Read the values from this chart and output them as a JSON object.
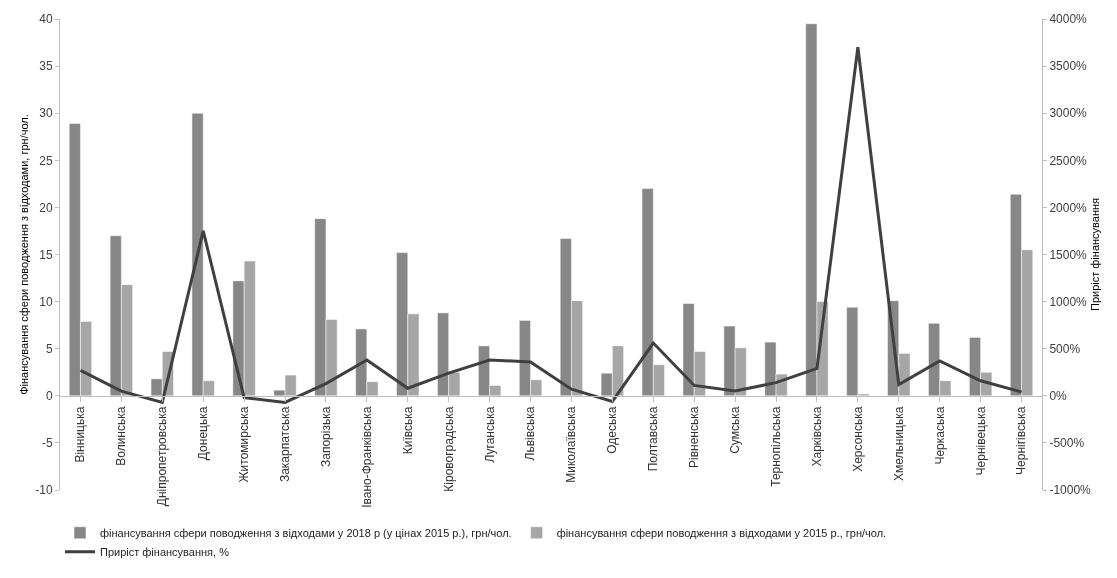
{
  "chart_data": {
    "type": "bar",
    "ylabel": "Фінансування сфери поводження з відходами, грн/чол.",
    "y2label": "Приріст фінансування",
    "categories": [
      "Вінницька",
      "Волинська",
      "Дніпропетровська",
      "Донецька",
      "Житомирська",
      "Закарпатська",
      "Запорізька",
      "Івано-Франківська",
      "Київська",
      "Кіровоградська",
      "Луганська",
      "Львівська",
      "Миколаївська",
      "Одеська",
      "Полтавська",
      "Рівненська",
      "Сумська",
      "Тернопільська",
      "Харківська",
      "Херсонська",
      "Хмельницька",
      "Черкаська",
      "Чернівецька",
      "Чернігівська"
    ],
    "series": [
      {
        "name": "фінансування сфери поводження з відходами у 2018 р (у цінах 2015 р.), грн/чол.",
        "color": "#878787",
        "values": [
          28.9,
          17,
          1.8,
          30,
          12.2,
          0.6,
          18.8,
          7.1,
          15.2,
          8.8,
          5.3,
          8,
          16.7,
          2.4,
          22,
          9.8,
          7.4,
          5.7,
          39.5,
          9.4,
          10.1,
          7.7,
          6.2,
          21.4
        ]
      },
      {
        "name": "фінансування сфери поводження з відходами у 2015 р., грн/чол.",
        "color": "#a6a6a6",
        "values": [
          7.9,
          11.8,
          4.7,
          1.6,
          14.3,
          2.2,
          8.1,
          1.5,
          8.7,
          2.5,
          1.1,
          1.7,
          10.1,
          5.3,
          3.3,
          4.7,
          5.1,
          2.3,
          10,
          0.2,
          4.5,
          1.6,
          2.5,
          15.5
        ]
      },
      {
        "name": "Приріст фінансування, %",
        "type": "line",
        "axis": "y2",
        "color": "#404040",
        "marker": "none",
        "values": [
          270,
          50,
          -70,
          1750,
          -20,
          -70,
          130,
          380,
          80,
          240,
          380,
          360,
          70,
          -60,
          560,
          110,
          50,
          140,
          290,
          3700,
          120,
          370,
          160,
          40
        ]
      }
    ],
    "ylim": [
      -10,
      40
    ],
    "yticks": [
      -10,
      -5,
      0,
      5,
      10,
      15,
      20,
      25,
      30,
      35,
      40
    ],
    "y2lim": [
      -1000,
      4000
    ],
    "y2ticks": [
      {
        "value": -1000,
        "label": "-1000%"
      },
      {
        "value": -500,
        "label": "-500%"
      },
      {
        "value": 0,
        "label": "0%"
      },
      {
        "value": 500,
        "label": "500%"
      },
      {
        "value": 1000,
        "label": "1000%"
      },
      {
        "value": 1500,
        "label": "1500%"
      },
      {
        "value": 2000,
        "label": "2000%"
      },
      {
        "value": 2500,
        "label": "2500%"
      },
      {
        "value": 3000,
        "label": "3000%"
      },
      {
        "value": 3500,
        "label": "3500%"
      },
      {
        "value": 4000,
        "label": "4000%"
      }
    ],
    "grid": false,
    "legend": "bottom left"
  }
}
